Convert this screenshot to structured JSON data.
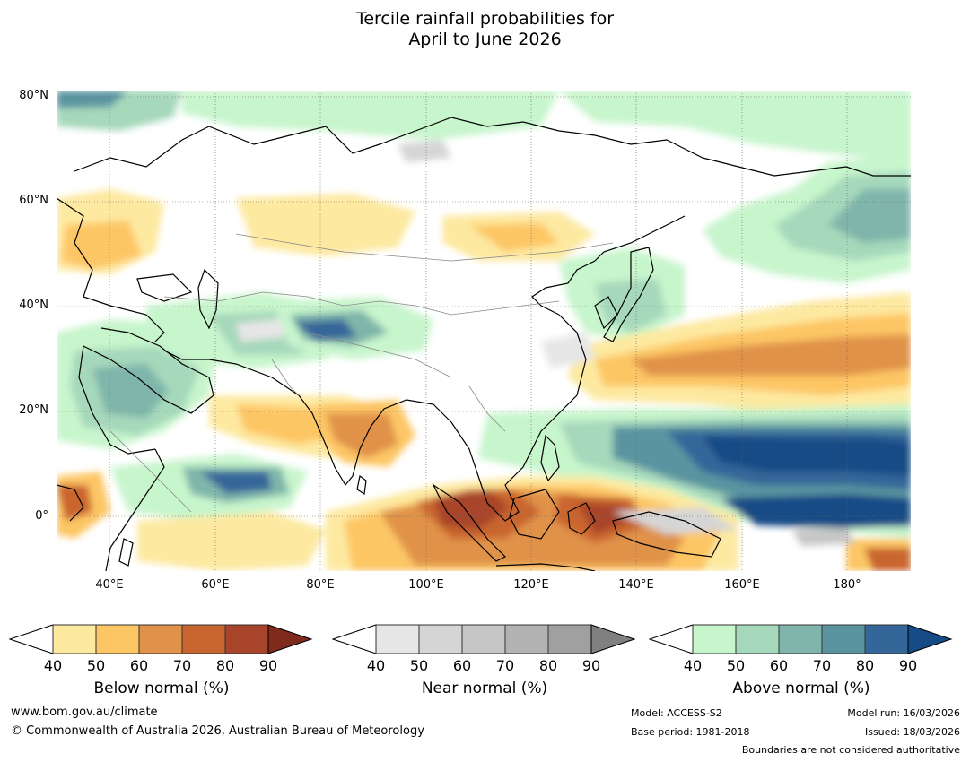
{
  "title": {
    "line1": "Tercile rainfall probabilities for",
    "line2": "April to June 2026"
  },
  "map": {
    "lat_labels": [
      "80°N",
      "60°N",
      "40°N",
      "20°N",
      "0°"
    ],
    "lon_labels": [
      "40°E",
      "60°E",
      "80°E",
      "100°E",
      "120°E",
      "140°E",
      "160°E",
      "180°"
    ]
  },
  "colorbars": {
    "below": {
      "label": "Below normal (%)",
      "ticks": [
        "40",
        "50",
        "60",
        "70",
        "80",
        "90"
      ],
      "colors": [
        "#ffffff",
        "#fde9a0",
        "#fdc665",
        "#e0924a",
        "#c9652f",
        "#a8442a",
        "#7e2a1c"
      ]
    },
    "near": {
      "label": "Near normal (%)",
      "ticks": [
        "40",
        "50",
        "60",
        "70",
        "80",
        "90"
      ],
      "colors": [
        "#ffffff",
        "#e6e6e6",
        "#d5d5d5",
        "#c6c6c6",
        "#b3b3b3",
        "#a0a0a0",
        "#808080"
      ]
    },
    "above": {
      "label": "Above normal (%)",
      "ticks": [
        "40",
        "50",
        "60",
        "70",
        "80",
        "90"
      ],
      "colors": [
        "#ffffff",
        "#c7f5cc",
        "#a6d8bb",
        "#7fb5aa",
        "#5a94a0",
        "#35669a",
        "#164b86"
      ]
    }
  },
  "footer": {
    "website": "www.bom.gov.au/climate",
    "copyright": "© Commonwealth of Australia 2026, Australian Bureau of Meteorology",
    "model": "Model: ACCESS-S2",
    "model_run": "Model run: 16/03/2026",
    "base_period": "Base period: 1981-2018",
    "issued": "Issued: 18/03/2026",
    "disclaimer": "Boundaries are not considered authoritative"
  }
}
